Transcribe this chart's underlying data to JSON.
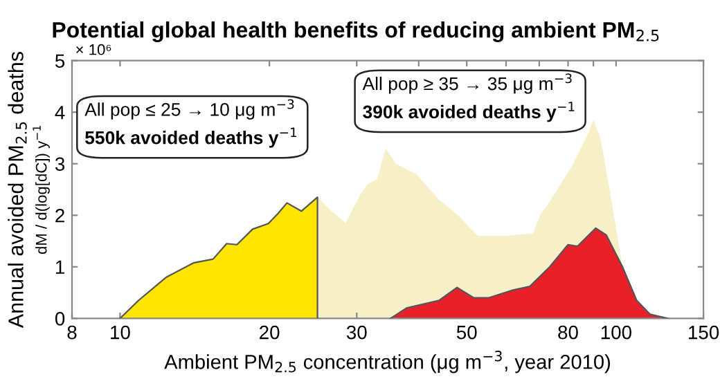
{
  "chart_data": {
    "type": "area",
    "title": "Potential global health benefits of reducing ambient PM$_{2.5}$",
    "xlabel": "Ambient PM$_{2.5}$ concentration (μg m$^{−3}$, year 2010)",
    "ylabel": "Annual avoided PM$_{2.5}$ deaths",
    "log": "x",
    "xlim": [
      8,
      150
    ],
    "ylim": [
      0,
      5
    ],
    "xticks": [
      8,
      10,
      20,
      30,
      {
        "value": 40,
        "label": null
      },
      50,
      {
        "value": 60,
        "label": null
      },
      {
        "value": 70,
        "label": null
      },
      80,
      {
        "value": 90,
        "label": null
      },
      100,
      150
    ],
    "yticks": [
      0,
      1,
      2,
      3,
      4,
      5
    ],
    "grid": false,
    "series": [
      {
        "color": "#f6efc8",
        "x": [
          10,
          10.9,
          12.4,
          14.1,
          15.4,
          16.4,
          17.2,
          18.5,
          19.9,
          20.8,
          21.7,
          23.2,
          25,
          26.5,
          28.5,
          30.5,
          31.5,
          33,
          34.3,
          36,
          39.5,
          44,
          48,
          52.6,
          60,
          68,
          70.3,
          75,
          82,
          88,
          90,
          93,
          97,
          103,
          110,
          116,
          125,
          135
        ],
        "values": [
          0,
          0.35,
          0.8,
          1.08,
          1.15,
          1.45,
          1.43,
          1.73,
          1.84,
          2.03,
          2.24,
          2.08,
          2.35,
          2.1,
          1.85,
          2.4,
          2.6,
          2.7,
          3.3,
          3.0,
          2.8,
          2.3,
          2.0,
          1.6,
          1.6,
          1.65,
          2.0,
          2.4,
          3.0,
          3.6,
          3.85,
          3.5,
          2.5,
          1.0,
          0.35,
          0.1,
          0.02,
          0
        ]
      },
      {
        "color": "#ffe500",
        "x": [
          10,
          10.9,
          12.4,
          14.1,
          15.4,
          16.4,
          17.2,
          18.5,
          19.9,
          20.8,
          21.7,
          23.2,
          25,
          25
        ],
        "values": [
          0,
          0.35,
          0.8,
          1.08,
          1.15,
          1.45,
          1.43,
          1.73,
          1.84,
          2.03,
          2.24,
          2.08,
          2.35,
          0
        ]
      },
      {
        "color": "#e8202a",
        "x": [
          35.1,
          37.8,
          44,
          47.8,
          51.6,
          55.4,
          62,
          67,
          73.5,
          80,
          83.6,
          91,
          95.5,
          103,
          110,
          117,
          127
        ],
        "values": [
          0,
          0.2,
          0.35,
          0.6,
          0.4,
          0.4,
          0.55,
          0.62,
          1.0,
          1.43,
          1.4,
          1.75,
          1.62,
          1.0,
          0.35,
          0.08,
          0
        ]
      }
    ],
    "annotations": [
      "× 10⁶",
      "dM / d(log[dC]) y$^{−1}$",
      "All pop ≤ 25 → 10 μg m$^{−3}$",
      "550k avoided deaths y$^{−1}$",
      "All pop ≥ 35 → 35 μg m$^{−3}$",
      "390k avoided deaths y$^{−1}$"
    ]
  }
}
